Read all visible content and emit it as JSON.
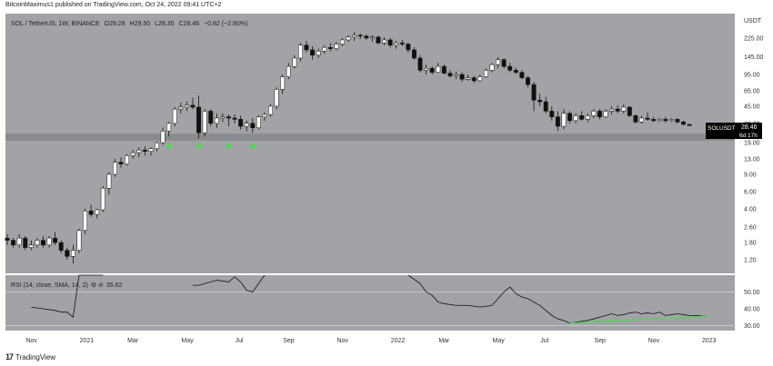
{
  "header": {
    "publisher_line": "BitcoinMaximus1 published on TradingView.com, Oct 24, 2022 09:41 UTC+2"
  },
  "symbol": {
    "title": "SOL / TetherUS, 1W, BINANCE",
    "ohlc": {
      "o_label": "O",
      "o": "29.28",
      "h_label": "H",
      "h": "29.50",
      "l_label": "L",
      "l": "28.35",
      "c_label": "C",
      "c": "28.46",
      "change": "−0.82 (−2.80%)"
    },
    "currency": "USDT"
  },
  "price_tag": {
    "symbol": "SOLUSDT",
    "price": "28.46",
    "countdown": "6d 17h"
  },
  "colors": {
    "panel_bg": "#a2a3a7",
    "up": "#ffffff",
    "down": "#111111",
    "support_zone": "#8a8b8f",
    "arrow": "#39e639",
    "rsi_line": "#111111",
    "rsi_divergence": "#39e639",
    "tag_bg": "#000000"
  },
  "rsi_legend": "RSI (14, close, SMA, 14, 2)",
  "rsi_value": "35.62",
  "footer": {
    "brand": "TradingView",
    "logo_icon": "tradingview-logo-icon"
  },
  "chart_data": [
    {
      "type": "candlestick",
      "title": "SOL / TetherUS, 1W, BINANCE",
      "y_scale": "log",
      "y_ticks": [
        "225.00",
        "145.00",
        "95.00",
        "65.00",
        "45.00",
        "30.00",
        "19.00",
        "13.00",
        "9.00",
        "6.00",
        "4.00",
        "2.60",
        "1.80",
        "1.20"
      ],
      "x_ticks": [
        "Nov",
        "2021",
        "Mar",
        "May",
        "Jul",
        "Sep",
        "Nov",
        "2022",
        "Mar",
        "May",
        "Jul",
        "Sep",
        "Nov",
        "2023"
      ],
      "support_zone": [
        20.0,
        23.5
      ],
      "support_touch_weeks": [
        27,
        32,
        37,
        41
      ],
      "candles": [
        [
          2.0,
          2.2,
          1.7,
          1.9
        ],
        [
          1.9,
          2.0,
          1.6,
          1.7
        ],
        [
          1.7,
          2.2,
          1.6,
          2.0
        ],
        [
          2.0,
          2.1,
          1.5,
          1.6
        ],
        [
          1.6,
          1.9,
          1.5,
          1.7
        ],
        [
          1.7,
          2.0,
          1.6,
          1.9
        ],
        [
          1.9,
          2.1,
          1.6,
          1.7
        ],
        [
          1.7,
          2.1,
          1.6,
          2.0
        ],
        [
          2.0,
          2.3,
          1.7,
          1.8
        ],
        [
          1.8,
          1.9,
          1.4,
          1.5
        ],
        [
          1.5,
          1.6,
          1.2,
          1.3
        ],
        [
          1.3,
          1.7,
          1.1,
          1.5
        ],
        [
          1.5,
          2.5,
          1.4,
          2.4
        ],
        [
          2.4,
          4.0,
          2.2,
          3.8
        ],
        [
          3.8,
          4.4,
          3.3,
          3.5
        ],
        [
          3.5,
          4.0,
          3.2,
          3.9
        ],
        [
          3.9,
          6.8,
          3.7,
          6.5
        ],
        [
          6.5,
          9.5,
          5.6,
          9.0
        ],
        [
          9.0,
          13.0,
          8.5,
          12.0
        ],
        [
          12.0,
          13.5,
          10.5,
          11.5
        ],
        [
          11.5,
          14.5,
          11.0,
          14.0
        ],
        [
          14.0,
          16.0,
          13.0,
          15.0
        ],
        [
          15.0,
          17.0,
          13.5,
          16.0
        ],
        [
          16.0,
          17.5,
          14.0,
          15.5
        ],
        [
          15.5,
          17.0,
          14.0,
          16.5
        ],
        [
          16.5,
          19.5,
          15.5,
          19.0
        ],
        [
          19.0,
          27.0,
          18.0,
          25.0
        ],
        [
          25.0,
          31.0,
          22.0,
          30.0
        ],
        [
          30.0,
          44.0,
          28.0,
          42.0
        ],
        [
          42.0,
          49.0,
          38.0,
          44.0
        ],
        [
          44.0,
          50.0,
          40.0,
          46.0
        ],
        [
          46.0,
          55.0,
          42.0,
          44.0
        ],
        [
          44.0,
          58.0,
          21.0,
          24.0
        ],
        [
          24.0,
          42.0,
          22.0,
          40.0
        ],
        [
          40.0,
          42.0,
          28.0,
          30.0
        ],
        [
          30.0,
          38.0,
          27.0,
          34.0
        ],
        [
          34.0,
          38.0,
          31.0,
          35.0
        ],
        [
          35.0,
          37.0,
          28.0,
          34.0
        ],
        [
          34.0,
          37.0,
          30.0,
          33.0
        ],
        [
          33.0,
          36.0,
          26.0,
          28.0
        ],
        [
          28.0,
          32.0,
          25.0,
          30.0
        ],
        [
          30.0,
          34.0,
          24.0,
          27.0
        ],
        [
          27.0,
          36.0,
          26.0,
          35.0
        ],
        [
          35.0,
          39.0,
          32.0,
          37.0
        ],
        [
          37.0,
          47.0,
          35.0,
          45.0
        ],
        [
          45.0,
          70.0,
          42.0,
          67.0
        ],
        [
          67.0,
          95.0,
          60.0,
          90.0
        ],
        [
          90.0,
          125.0,
          85.0,
          115.0
        ],
        [
          115.0,
          150.0,
          110.0,
          140.0
        ],
        [
          140.0,
          200.0,
          130.0,
          190.0
        ],
        [
          190.0,
          210.0,
          160.0,
          170.0
        ],
        [
          170.0,
          185.0,
          135.0,
          150.0
        ],
        [
          150.0,
          175.0,
          140.0,
          165.0
        ],
        [
          165.0,
          190.0,
          155.0,
          180.0
        ],
        [
          180.0,
          200.0,
          165.0,
          175.0
        ],
        [
          175.0,
          205.0,
          168.0,
          195.0
        ],
        [
          195.0,
          225.0,
          185.0,
          215.0
        ],
        [
          215.0,
          240.0,
          205.0,
          230.0
        ],
        [
          230.0,
          259.0,
          210.0,
          240.0
        ],
        [
          240.0,
          250.0,
          220.0,
          235.0
        ],
        [
          235.0,
          245.0,
          215.0,
          225.0
        ],
        [
          225.0,
          240.0,
          205.0,
          230.0
        ],
        [
          230.0,
          238.0,
          195.0,
          200.0
        ],
        [
          200.0,
          230.0,
          190.0,
          215.0
        ],
        [
          215.0,
          225.0,
          180.0,
          190.0
        ],
        [
          190.0,
          210.0,
          175.0,
          200.0
        ],
        [
          200.0,
          215.0,
          185.0,
          195.0
        ],
        [
          195.0,
          200.0,
          160.0,
          170.0
        ],
        [
          170.0,
          180.0,
          135.0,
          140.0
        ],
        [
          140.0,
          150.0,
          100.0,
          105.0
        ],
        [
          105.0,
          120.0,
          95.0,
          110.0
        ],
        [
          110.0,
          115.0,
          95.0,
          100.0
        ],
        [
          100.0,
          125.0,
          98.0,
          115.0
        ],
        [
          115.0,
          120.0,
          95.0,
          98.0
        ],
        [
          98.0,
          105.0,
          88.0,
          92.0
        ],
        [
          92.0,
          102.0,
          85.0,
          95.0
        ],
        [
          95.0,
          100.0,
          80.0,
          85.0
        ],
        [
          85.0,
          95.0,
          82.0,
          88.0
        ],
        [
          88.0,
          92.0,
          78.0,
          82.0
        ],
        [
          82.0,
          95.0,
          80.0,
          90.0
        ],
        [
          90.0,
          110.0,
          88.0,
          105.0
        ],
        [
          105.0,
          125.0,
          100.0,
          120.0
        ],
        [
          120.0,
          143.0,
          110.0,
          135.0
        ],
        [
          135.0,
          140.0,
          110.0,
          115.0
        ],
        [
          115.0,
          125.0,
          100.0,
          105.0
        ],
        [
          105.0,
          112.0,
          96.0,
          100.0
        ],
        [
          100.0,
          105.0,
          85.0,
          88.0
        ],
        [
          88.0,
          92.0,
          70.0,
          75.0
        ],
        [
          75.0,
          80.0,
          40.0,
          52.0
        ],
        [
          52.0,
          60.0,
          45.0,
          50.0
        ],
        [
          50.0,
          56.0,
          38.0,
          40.0
        ],
        [
          40.0,
          45.0,
          32.0,
          35.0
        ],
        [
          35.0,
          40.0,
          25.0,
          28.0
        ],
        [
          28.0,
          42.0,
          26.0,
          38.0
        ],
        [
          38.0,
          40.0,
          30.0,
          32.0
        ],
        [
          32.0,
          38.0,
          30.0,
          36.0
        ],
        [
          36.0,
          40.0,
          32.0,
          33.0
        ],
        [
          33.0,
          38.0,
          31.0,
          36.0
        ],
        [
          36.0,
          42.0,
          34.0,
          40.0
        ],
        [
          40.0,
          42.0,
          33.0,
          35.0
        ],
        [
          35.0,
          42.0,
          34.0,
          40.0
        ],
        [
          40.0,
          45.0,
          37.0,
          42.0
        ],
        [
          42.0,
          46.0,
          38.0,
          40.0
        ],
        [
          40.0,
          47.0,
          38.0,
          44.0
        ],
        [
          44.0,
          45.0,
          35.0,
          36.0
        ],
        [
          36.0,
          37.0,
          30.0,
          31.0
        ],
        [
          31.0,
          36.0,
          30.0,
          34.0
        ],
        [
          34.0,
          39.0,
          32.0,
          33.0
        ],
        [
          33.0,
          35.0,
          31.0,
          32.0
        ],
        [
          32.0,
          34.0,
          31.0,
          33.0
        ],
        [
          33.0,
          35.0,
          30.5,
          32.0
        ],
        [
          32.0,
          34.0,
          31.0,
          33.0
        ],
        [
          33.0,
          34.0,
          30.0,
          31.0
        ],
        [
          31.0,
          32.0,
          28.5,
          29.3
        ],
        [
          29.28,
          29.5,
          28.35,
          28.46
        ]
      ]
    },
    {
      "type": "line",
      "name": "RSI (14, close, SMA, 14, 2)",
      "y_ticks": [
        "50.00",
        "40.00",
        "30.00"
      ],
      "last_value": 35.62,
      "points": [
        [
          4,
          41
        ],
        [
          6,
          40
        ],
        [
          8,
          39
        ],
        [
          9,
          38
        ],
        [
          10,
          38
        ],
        [
          11,
          35
        ],
        [
          12,
          63
        ],
        [
          14,
          85
        ],
        [
          16,
          83
        ],
        [
          31,
          54
        ],
        [
          32,
          54
        ],
        [
          33,
          55
        ],
        [
          35,
          57
        ],
        [
          37,
          56
        ],
        [
          38,
          59
        ],
        [
          39,
          56
        ],
        [
          40,
          51
        ],
        [
          41,
          50
        ],
        [
          42,
          55
        ],
        [
          43,
          60
        ],
        [
          67,
          60
        ],
        [
          69,
          55
        ],
        [
          70,
          50
        ],
        [
          71,
          48
        ],
        [
          72,
          44
        ],
        [
          73,
          43
        ],
        [
          75,
          42
        ],
        [
          77,
          42
        ],
        [
          79,
          41
        ],
        [
          81,
          42
        ],
        [
          83,
          50
        ],
        [
          84,
          53
        ],
        [
          85,
          49
        ],
        [
          86,
          47
        ],
        [
          87,
          46
        ],
        [
          88,
          44
        ],
        [
          89,
          42
        ],
        [
          90,
          39
        ],
        [
          91,
          36
        ],
        [
          92,
          34
        ],
        [
          93,
          33
        ],
        [
          94,
          31.5
        ],
        [
          95,
          32
        ],
        [
          96,
          32.5
        ],
        [
          97,
          33
        ],
        [
          98,
          34
        ],
        [
          99,
          35
        ],
        [
          100,
          36
        ],
        [
          101,
          37
        ],
        [
          102,
          36
        ],
        [
          103,
          36.5
        ],
        [
          104,
          37.5
        ],
        [
          105,
          38
        ],
        [
          106,
          37
        ],
        [
          107,
          37.5
        ],
        [
          108,
          37
        ],
        [
          109,
          38
        ],
        [
          110,
          36
        ],
        [
          111,
          36.5
        ],
        [
          112,
          37
        ],
        [
          113,
          36.5
        ],
        [
          114,
          36
        ],
        [
          115,
          35.9
        ],
        [
          116,
          35.7
        ],
        [
          117,
          35.62
        ]
      ],
      "divergence_line": [
        [
          94,
          31.5
        ],
        [
          117,
          35.62
        ]
      ]
    }
  ]
}
